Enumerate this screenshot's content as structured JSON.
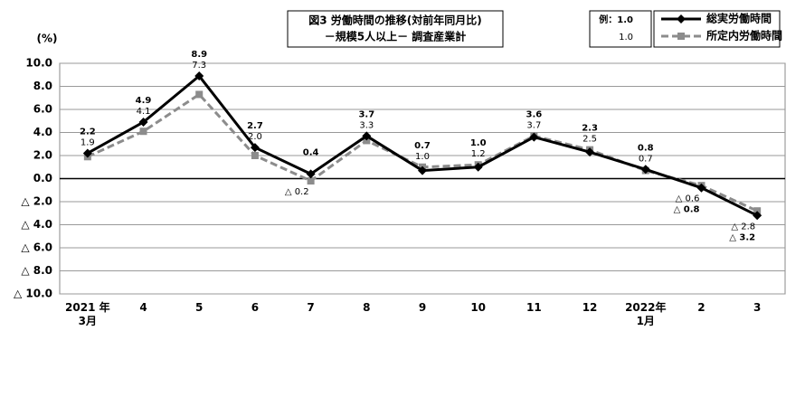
{
  "chart_data": {
    "type": "line",
    "title": "図3  労働時間の推移(対前年同月比)",
    "subtitle": "－規模5人以上－  調査産業計",
    "y_label": "(%)",
    "legend_example": [
      "例：1.0",
      "1.0"
    ],
    "categories": [
      "2021 年\n3月",
      "4",
      "5",
      "6",
      "7",
      "8",
      "9",
      "10",
      "11",
      "12",
      "2022年\n1月",
      "2",
      "3"
    ],
    "series": [
      {
        "name": "総実労働時間",
        "color": "#000000",
        "dashed": false,
        "values": [
          2.2,
          4.9,
          8.9,
          2.7,
          0.4,
          3.7,
          0.7,
          1.0,
          3.6,
          2.3,
          0.8,
          -0.8,
          -3.2
        ],
        "value_labels": [
          "2.2",
          "4.9",
          "8.9",
          "2.7",
          "0.4",
          "3.7",
          "0.7",
          "1.0",
          "3.6",
          "2.3",
          "0.8",
          "△ 0.8",
          "△ 3.2"
        ]
      },
      {
        "name": "所定内労働時間",
        "color": "#8c8c8c",
        "dashed": true,
        "values": [
          1.9,
          4.1,
          7.3,
          2.0,
          -0.2,
          3.3,
          1.0,
          1.2,
          3.7,
          2.5,
          0.7,
          -0.6,
          -2.8
        ],
        "value_labels": [
          "1.9",
          "4.1",
          "7.3",
          "2.0",
          "△ 0.2",
          "3.3",
          "1.0",
          "1.2",
          "3.7",
          "2.5",
          "0.7",
          "△ 0.6",
          "△ 2.8"
        ]
      }
    ],
    "ylim": [
      -10,
      10
    ],
    "yticks": [
      {
        "value": 10,
        "label": "10.0"
      },
      {
        "value": 8,
        "label": "8.0"
      },
      {
        "value": 6,
        "label": "6.0"
      },
      {
        "value": 4,
        "label": "4.0"
      },
      {
        "value": 2,
        "label": "2.0"
      },
      {
        "value": 0,
        "label": "0.0"
      },
      {
        "value": -2,
        "label": "△ 2.0"
      },
      {
        "value": -4,
        "label": "△ 4.0"
      },
      {
        "value": -6,
        "label": "△ 6.0"
      },
      {
        "value": -8,
        "label": "△ 8.0"
      },
      {
        "value": -10,
        "label": "△ 10.0"
      }
    ],
    "grid": true
  }
}
